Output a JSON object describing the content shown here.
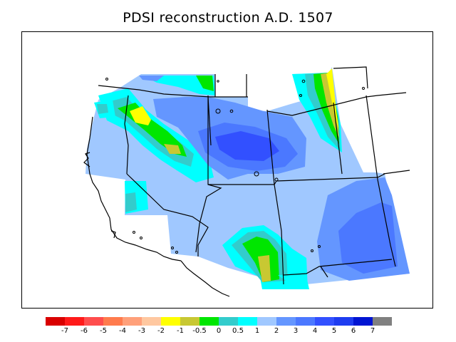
{
  "title": "PDSI reconstruction A.D. 1507",
  "legend": {
    "colors": [
      "#d90000",
      "#ff1a1a",
      "#ff4d4d",
      "#ff7b4d",
      "#ffa07a",
      "#ffc8a0",
      "#ffff00",
      "#c8c832",
      "#00e600",
      "#33cccc",
      "#00ffff",
      "#a0c8ff",
      "#6496ff",
      "#4b78ff",
      "#3250ff",
      "#1e3cf0",
      "#0014d2",
      "#808080"
    ],
    "labels": [
      "-7",
      "-6",
      "-5",
      "-4",
      "-3",
      "-2",
      "-1",
      "-0.5",
      "0",
      "0.5",
      "1",
      "2",
      "3",
      "4",
      "5",
      "6",
      "7"
    ]
  },
  "palette": {
    "light_blue": "#a0c8ff",
    "mid_blue": "#6496ff",
    "blue": "#4b78ff",
    "dark_blue": "#3250ff",
    "cyan": "#00ffff",
    "teal": "#33cccc",
    "green": "#00e600",
    "olive": "#c8c832",
    "yellow": "#ffff00"
  }
}
